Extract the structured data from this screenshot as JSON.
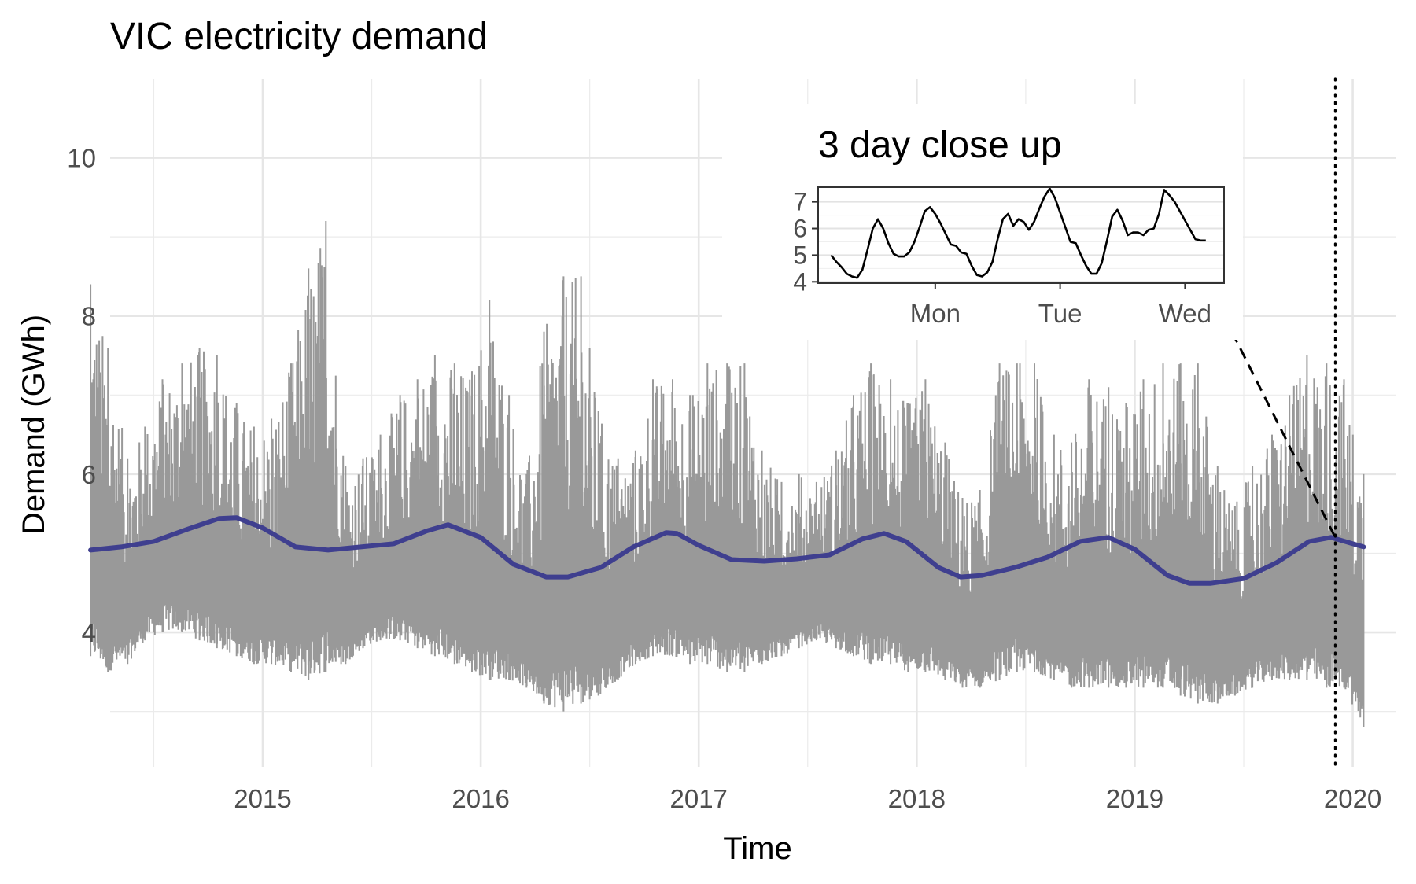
{
  "chart_data": [
    {
      "type": "line",
      "title": "VIC electricity demand",
      "xlabel": "Time",
      "ylabel": "Demand (GWh)",
      "xlim": [
        2014.3,
        2020.2
      ],
      "ylim": [
        2.3,
        11.0
      ],
      "x_ticks": [
        2015,
        2016,
        2017,
        2018,
        2019,
        2020
      ],
      "x_tick_labels": [
        "2015",
        "2016",
        "2017",
        "2018",
        "2019",
        "2020"
      ],
      "y_ticks": [
        4,
        6,
        8,
        10
      ],
      "y_tick_labels": [
        "4",
        "6",
        "8",
        "10"
      ],
      "grid": true,
      "series": [
        {
          "style": "half-hourly demand band",
          "color": "#999999",
          "x": [
            2014.21,
            2014.29,
            2014.38,
            2014.46,
            2014.54,
            2014.63,
            2014.71,
            2014.79,
            2014.88,
            2014.96,
            2015.04,
            2015.13,
            2015.21,
            2015.29,
            2015.38,
            2015.46,
            2015.54,
            2015.63,
            2015.71,
            2015.79,
            2015.88,
            2015.96,
            2016.04,
            2016.13,
            2016.21,
            2016.29,
            2016.38,
            2016.46,
            2016.54,
            2016.63,
            2016.71,
            2016.79,
            2016.88,
            2016.96,
            2017.04,
            2017.13,
            2017.21,
            2017.29,
            2017.38,
            2017.46,
            2017.54,
            2017.63,
            2017.71,
            2017.79,
            2017.88,
            2017.96,
            2018.04,
            2018.13,
            2018.21,
            2018.29,
            2018.38,
            2018.46,
            2018.54,
            2018.63,
            2018.71,
            2018.79,
            2018.88,
            2018.96,
            2019.04,
            2019.13,
            2019.21,
            2019.29,
            2019.38,
            2019.46,
            2019.54,
            2019.63,
            2019.71,
            2019.79,
            2019.88,
            2019.96,
            2020.05
          ],
          "y_min": [
            3.7,
            3.5,
            3.6,
            3.9,
            4.0,
            4.0,
            3.9,
            3.8,
            3.7,
            3.6,
            3.6,
            3.5,
            3.4,
            3.5,
            3.6,
            3.8,
            3.9,
            3.9,
            3.8,
            3.7,
            3.6,
            3.5,
            3.4,
            3.4,
            3.3,
            3.1,
            3.0,
            3.1,
            3.2,
            3.4,
            3.6,
            3.7,
            3.7,
            3.6,
            3.6,
            3.5,
            3.5,
            3.6,
            3.7,
            3.8,
            3.9,
            3.8,
            3.7,
            3.6,
            3.6,
            3.5,
            3.5,
            3.4,
            3.3,
            3.3,
            3.4,
            3.5,
            3.5,
            3.4,
            3.3,
            3.3,
            3.3,
            3.3,
            3.3,
            3.3,
            3.2,
            3.1,
            3.1,
            3.2,
            3.3,
            3.4,
            3.4,
            3.4,
            3.3,
            3.3,
            2.8
          ],
          "y_max": [
            8.4,
            7.6,
            6.2,
            6.6,
            7.2,
            7.4,
            7.6,
            7.5,
            6.9,
            6.6,
            6.7,
            7.4,
            8.6,
            9.2,
            6.1,
            6.2,
            6.5,
            7.0,
            7.2,
            7.5,
            7.4,
            7.3,
            8.2,
            7.0,
            6.0,
            7.8,
            8.5,
            8.5,
            6.8,
            6.2,
            6.3,
            7.2,
            7.2,
            7.0,
            7.4,
            7.4,
            7.4,
            6.3,
            5.9,
            6.0,
            5.9,
            6.3,
            7.0,
            7.4,
            7.2,
            6.9,
            7.2,
            6.4,
            5.7,
            5.8,
            7.4,
            7.4,
            7.4,
            6.5,
            6.4,
            7.2,
            7.1,
            6.9,
            7.2,
            7.4,
            7.4,
            7.4,
            6.1,
            5.6,
            6.1,
            6.5,
            7.0,
            7.5,
            7.4,
            7.2,
            6.0
          ]
        },
        {
          "style": "smooth trend",
          "color": "#3F3F8F",
          "x": [
            2014.21,
            2014.35,
            2014.5,
            2014.65,
            2014.8,
            2014.88,
            2015.0,
            2015.15,
            2015.3,
            2015.45,
            2015.6,
            2015.75,
            2015.85,
            2016.0,
            2016.15,
            2016.3,
            2016.4,
            2016.55,
            2016.7,
            2016.85,
            2016.9,
            2017.0,
            2017.15,
            2017.3,
            2017.45,
            2017.6,
            2017.75,
            2017.85,
            2017.95,
            2018.1,
            2018.2,
            2018.3,
            2018.45,
            2018.6,
            2018.75,
            2018.88,
            2019.0,
            2019.15,
            2019.25,
            2019.35,
            2019.5,
            2019.65,
            2019.8,
            2019.9,
            2020.05
          ],
          "y": [
            5.04,
            5.08,
            5.15,
            5.3,
            5.44,
            5.45,
            5.32,
            5.08,
            5.04,
            5.08,
            5.12,
            5.28,
            5.36,
            5.2,
            4.86,
            4.7,
            4.7,
            4.82,
            5.08,
            5.26,
            5.25,
            5.1,
            4.92,
            4.9,
            4.93,
            4.98,
            5.18,
            5.25,
            5.15,
            4.82,
            4.7,
            4.72,
            4.82,
            4.95,
            5.15,
            5.2,
            5.05,
            4.72,
            4.62,
            4.62,
            4.68,
            4.88,
            5.15,
            5.2,
            5.08
          ]
        }
      ],
      "annotation": {
        "vline_x": 2019.92,
        "vline_style": "dotted",
        "connector_style": "dashed"
      }
    },
    {
      "type": "line",
      "title": "3 day close up",
      "x_tick_labels": [
        "Mon",
        "Tue",
        "Wed"
      ],
      "x_ticks_hours": [
        24,
        48,
        72
      ],
      "y_ticks": [
        4,
        5,
        6,
        7
      ],
      "y_tick_labels": [
        "4",
        "5",
        "6",
        "7"
      ],
      "ylim": [
        3.95,
        7.55
      ],
      "xlim_hours": [
        1.5,
        79.5
      ],
      "grid": true,
      "series": [
        {
          "color": "#000000",
          "x_hours": [
            4,
            5,
            6,
            7,
            8,
            9,
            10,
            11,
            12,
            13,
            14,
            15,
            16,
            17,
            18,
            19,
            20,
            21,
            22,
            23,
            24,
            25,
            26,
            27,
            28,
            29,
            30,
            31,
            32,
            33,
            34,
            35,
            36,
            37,
            38,
            39,
            40,
            41,
            42,
            43,
            44,
            45,
            46,
            47,
            48,
            49,
            50,
            51,
            52,
            53,
            54,
            55,
            56,
            57,
            58,
            59,
            60,
            61,
            62,
            63,
            64,
            65,
            66,
            67,
            68,
            69,
            70,
            71,
            72,
            73,
            74,
            75,
            76
          ],
          "y": [
            5.0,
            4.75,
            4.55,
            4.3,
            4.2,
            4.15,
            4.45,
            5.2,
            6.0,
            6.35,
            6.0,
            5.45,
            5.05,
            4.95,
            4.95,
            5.1,
            5.5,
            6.05,
            6.65,
            6.8,
            6.55,
            6.2,
            5.8,
            5.4,
            5.35,
            5.1,
            5.05,
            4.6,
            4.25,
            4.2,
            4.35,
            4.75,
            5.6,
            6.35,
            6.55,
            6.1,
            6.35,
            6.25,
            5.95,
            6.25,
            6.75,
            7.2,
            7.5,
            7.15,
            6.6,
            6.05,
            5.5,
            5.45,
            5.0,
            4.6,
            4.3,
            4.3,
            4.7,
            5.55,
            6.45,
            6.7,
            6.3,
            5.75,
            5.85,
            5.85,
            5.75,
            5.95,
            6.0,
            6.55,
            7.45,
            7.25,
            7.0,
            6.65,
            6.3,
            5.95,
            5.6,
            5.55,
            5.55
          ]
        }
      ]
    }
  ]
}
